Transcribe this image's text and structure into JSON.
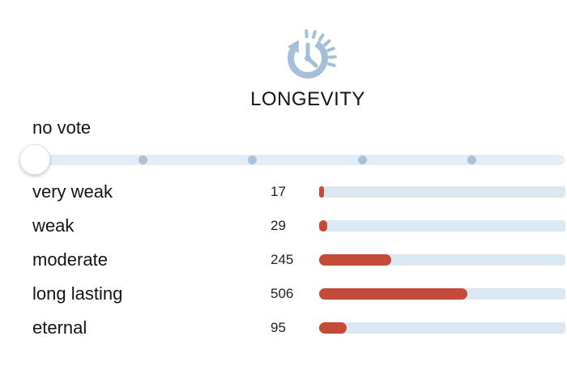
{
  "header": {
    "icon": "clock-history-icon",
    "title": "LONGEVITY"
  },
  "slider": {
    "current_value_label": "no vote"
  },
  "rows": [
    {
      "label": "very weak",
      "count": 17
    },
    {
      "label": "weak",
      "count": 29
    },
    {
      "label": "moderate",
      "count": 245
    },
    {
      "label": "long lasting",
      "count": 506
    },
    {
      "label": "eternal",
      "count": 95
    }
  ],
  "colors": {
    "bar_red": "#c54b39",
    "bar_track_blue": "#dbe7f1",
    "slider_track_blue": "#e4edf5",
    "slider_dot_blue": "#abc2d6",
    "icon_blue": "#a5bfd9",
    "text": "#141414"
  },
  "chart_data": {
    "type": "bar",
    "orientation": "horizontal",
    "title": "LONGEVITY",
    "categories": [
      "very weak",
      "weak",
      "moderate",
      "long lasting",
      "eternal"
    ],
    "values": [
      17,
      29,
      245,
      506,
      95
    ],
    "xlabel": "",
    "ylabel": "",
    "legend": false,
    "grid": false
  }
}
